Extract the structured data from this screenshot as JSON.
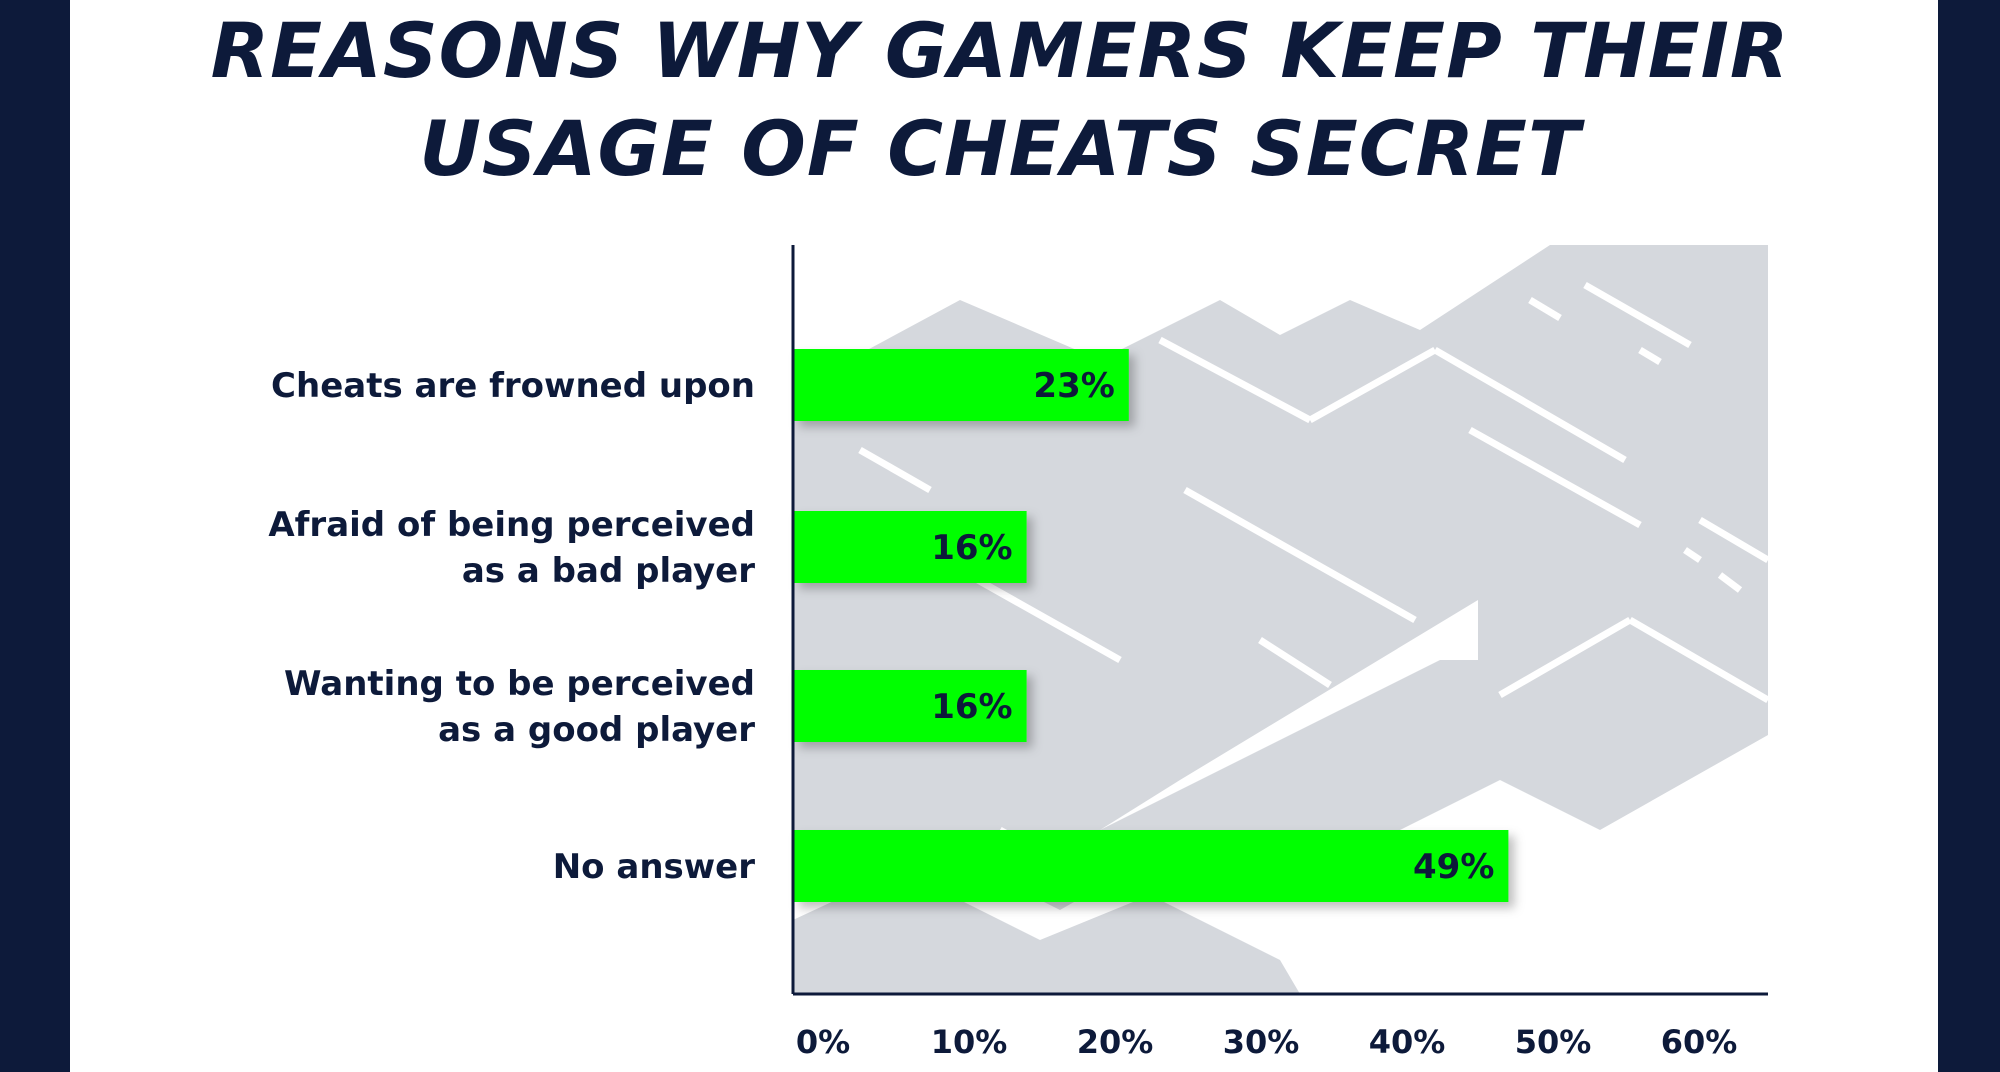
{
  "title_lines": [
    "REASONS WHY GAMERS KEEP THEIR",
    "USAGE OF CHEATS SECRET"
  ],
  "colors": {
    "frame": "#0d1a3a",
    "panel": "#ffffff",
    "text": "#0d1a3a",
    "bar": "#00ff00",
    "decor": "#d5d8dd",
    "axis": "#0d1a3a"
  },
  "chart_data": {
    "type": "bar",
    "orientation": "horizontal",
    "title": "REASONS WHY GAMERS KEEP THEIR USAGE OF CHEATS SECRET",
    "categories": [
      [
        "Cheats are frowned upon"
      ],
      [
        "Afraid of being perceived",
        "as a bad player"
      ],
      [
        "Wanting to be perceived",
        "as a good player"
      ],
      [
        "No answer"
      ]
    ],
    "values": [
      23,
      16,
      16,
      49
    ],
    "value_labels": [
      "23%",
      "16%",
      "16%",
      "49%"
    ],
    "xlim": [
      0,
      65
    ],
    "xticks": [
      0,
      10,
      20,
      30,
      40,
      50,
      60
    ],
    "xtick_labels": [
      "0%",
      "10%",
      "20%",
      "30%",
      "40%",
      "50%",
      "60%"
    ],
    "grid": false,
    "legend": "none"
  }
}
